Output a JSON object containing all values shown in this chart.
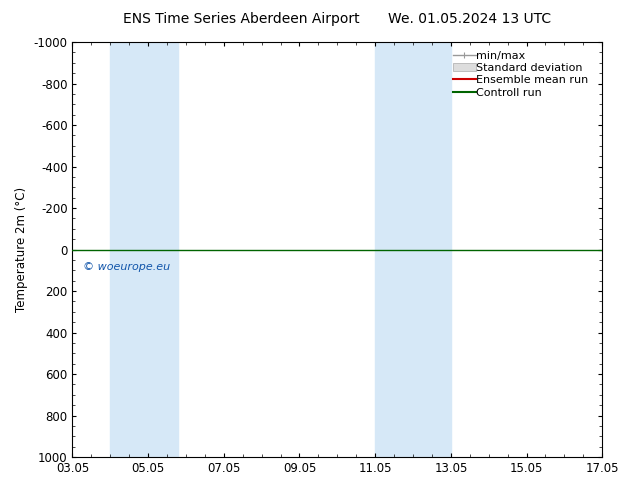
{
  "title_left": "ENS Time Series Aberdeen Airport",
  "title_right": "We. 01.05.2024 13 UTC",
  "ylabel": "Temperature 2m (°C)",
  "ylim_bottom": 1000,
  "ylim_top": -1000,
  "yticks": [
    -1000,
    -800,
    -600,
    -400,
    -200,
    0,
    200,
    400,
    600,
    800,
    1000
  ],
  "ytick_labels": [
    "-1000",
    "-800",
    "-600",
    "-400",
    "-200",
    "0",
    "200",
    "400",
    "600",
    "800",
    "1000"
  ],
  "xtick_labels": [
    "03.05",
    "05.05",
    "07.05",
    "09.05",
    "11.05",
    "13.05",
    "15.05",
    "17.05"
  ],
  "xtick_positions": [
    3,
    5,
    7,
    9,
    11,
    13,
    15,
    17
  ],
  "xlim": [
    3,
    17
  ],
  "shaded_bands": [
    {
      "xstart": 4.0,
      "xend": 5.8,
      "color": "#d6e8f7"
    },
    {
      "xstart": 11.0,
      "xend": 13.0,
      "color": "#d6e8f7"
    }
  ],
  "control_run_y": 0,
  "control_run_color": "#006400",
  "ensemble_mean_color": "#cc0000",
  "watermark": "© woeurope.eu",
  "watermark_color": "#1155aa",
  "background_color": "#ffffff",
  "legend_items": [
    "min/max",
    "Standard deviation",
    "Ensemble mean run",
    "Controll run"
  ],
  "legend_colors_line": [
    "#999999",
    "#bbbbbb",
    "#cc0000",
    "#006400"
  ],
  "title_fontsize": 10,
  "axis_fontsize": 8.5,
  "legend_fontsize": 8
}
